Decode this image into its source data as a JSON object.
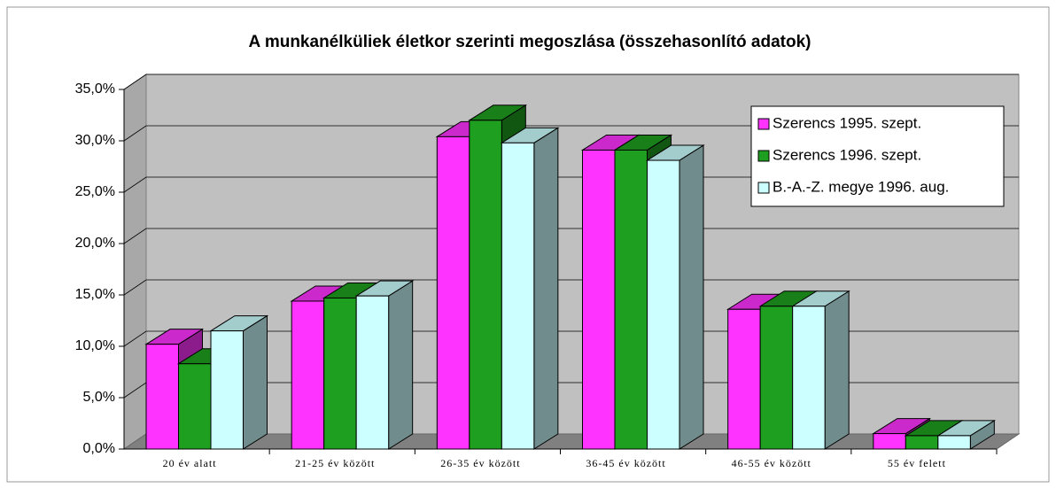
{
  "chart_data": {
    "type": "bar3d",
    "title": "A munkanélküliek életkor szerinti megoszlása (összehasonlító adatok)",
    "categories": [
      "20 év alatt",
      "21-25 év között",
      "26-35 év között",
      "36-45 év között",
      "46-55 év között",
      "55 év felett"
    ],
    "series": [
      {
        "name": "Szerencs 1995. szept.",
        "color": "#ff33ff",
        "values": [
          10.2,
          14.4,
          30.4,
          29.1,
          13.6,
          1.5
        ]
      },
      {
        "name": "Szerencs 1996. szept.",
        "color": "#1f9f1f",
        "values": [
          8.3,
          14.7,
          32.0,
          29.1,
          13.9,
          1.3
        ]
      },
      {
        "name": "B.-A.-Z. megye 1996. aug.",
        "color": "#ccffff",
        "values": [
          11.5,
          14.9,
          29.8,
          28.1,
          13.9,
          1.3
        ]
      }
    ],
    "ylim": [
      0,
      35
    ],
    "yticks": [
      {
        "value": 0,
        "label": "0,0%"
      },
      {
        "value": 5,
        "label": "5,0%"
      },
      {
        "value": 10,
        "label": "10,0%"
      },
      {
        "value": 15,
        "label": "15,0%"
      },
      {
        "value": 20,
        "label": "20,0%"
      },
      {
        "value": 25,
        "label": "25,0%"
      },
      {
        "value": 30,
        "label": "30,0%"
      },
      {
        "value": 35,
        "label": "35,0%"
      }
    ],
    "grid": true,
    "legend": "upper right"
  }
}
